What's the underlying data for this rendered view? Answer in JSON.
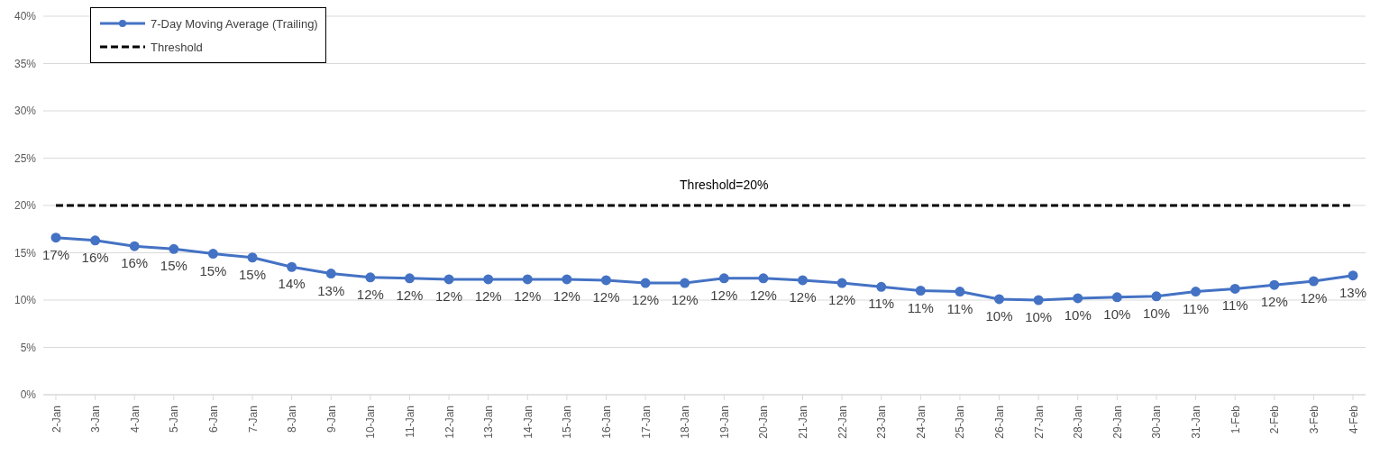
{
  "chart_data": {
    "type": "line",
    "categories": [
      "2-Jan",
      "3-Jan",
      "4-Jan",
      "5-Jan",
      "6-Jan",
      "7-Jan",
      "8-Jan",
      "9-Jan",
      "10-Jan",
      "11-Jan",
      "12-Jan",
      "13-Jan",
      "14-Jan",
      "15-Jan",
      "16-Jan",
      "17-Jan",
      "18-Jan",
      "19-Jan",
      "20-Jan",
      "21-Jan",
      "22-Jan",
      "23-Jan",
      "24-Jan",
      "25-Jan",
      "26-Jan",
      "27-Jan",
      "28-Jan",
      "29-Jan",
      "30-Jan",
      "31-Jan",
      "1-Feb",
      "2-Feb",
      "3-Feb",
      "4-Feb"
    ],
    "series": [
      {
        "name": "7-Day Moving Average (Trailing)",
        "color": "#4472c4",
        "marker": "circle",
        "line_style": "solid",
        "values": [
          16.6,
          16.3,
          15.7,
          15.4,
          14.9,
          14.5,
          13.5,
          12.8,
          12.4,
          12.3,
          12.2,
          12.2,
          12.2,
          12.2,
          12.1,
          11.8,
          11.8,
          12.3,
          12.3,
          12.1,
          11.8,
          11.4,
          11.0,
          10.9,
          10.1,
          10.0,
          10.2,
          10.3,
          10.4,
          10.9,
          11.2,
          11.6,
          12.0,
          12.6
        ],
        "value_labels": [
          "17%",
          "16%",
          "16%",
          "15%",
          "15%",
          "15%",
          "14%",
          "13%",
          "12%",
          "12%",
          "12%",
          "12%",
          "12%",
          "12%",
          "12%",
          "12%",
          "12%",
          "12%",
          "12%",
          "12%",
          "12%",
          "11%",
          "11%",
          "11%",
          "10%",
          "10%",
          "10%",
          "10%",
          "10%",
          "11%",
          "11%",
          "12%",
          "12%",
          "13%"
        ]
      },
      {
        "name": "Threshold",
        "color": "#000000",
        "marker": "none",
        "line_style": "dashed",
        "values": [
          20,
          20,
          20,
          20,
          20,
          20,
          20,
          20,
          20,
          20,
          20,
          20,
          20,
          20,
          20,
          20,
          20,
          20,
          20,
          20,
          20,
          20,
          20,
          20,
          20,
          20,
          20,
          20,
          20,
          20,
          20,
          20,
          20,
          20
        ]
      }
    ],
    "ylim": [
      0,
      40
    ],
    "yticks": [
      {
        "value": 0,
        "label": "0%"
      },
      {
        "value": 5,
        "label": "5%"
      },
      {
        "value": 10,
        "label": "10%"
      },
      {
        "value": 15,
        "label": "15%"
      },
      {
        "value": 20,
        "label": "20%"
      },
      {
        "value": 25,
        "label": "25%"
      },
      {
        "value": 30,
        "label": "30%"
      },
      {
        "value": 35,
        "label": "35%"
      },
      {
        "value": 40,
        "label": "40%"
      }
    ],
    "grid": "y",
    "legend": "top left",
    "annotations": [
      {
        "text": "Threshold=20%",
        "x": "19-Jan",
        "y": 20
      }
    ]
  }
}
